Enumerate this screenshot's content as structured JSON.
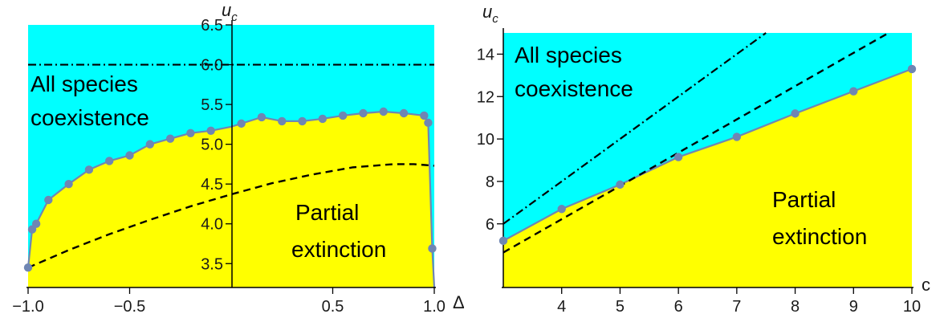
{
  "colors": {
    "coexistence": "#00ffff",
    "extinction": "#ffff00",
    "threshold_line": "#6f86b3",
    "marker": "#6f86b3",
    "dashed": "#000000",
    "axis": "#000000"
  },
  "chart_data": [
    {
      "type": "area",
      "xlabel": "Δ",
      "ylabel_main": "u",
      "ylabel_sub": "c",
      "xlim": [
        -1.0,
        1.0
      ],
      "ylim": [
        3.2,
        6.5
      ],
      "x_ticks": [
        "−1.0",
        "−0.5",
        "0.5",
        "1.0"
      ],
      "x_tick_values": [
        -1.0,
        -0.5,
        0.5,
        1.0
      ],
      "y_ticks": [
        "3.5",
        "4.0",
        "4.5",
        "5.0",
        "5.5",
        "6.0",
        "6.5"
      ],
      "y_tick_values": [
        3.5,
        4.0,
        4.5,
        5.0,
        5.5,
        6.0,
        6.5
      ],
      "grid": false,
      "region_upper_label": [
        "All species",
        "coexistence"
      ],
      "region_lower_label": [
        "Partial",
        "extinction"
      ],
      "series": [
        {
          "role": "threshold",
          "x": [
            -1.0,
            -0.98,
            -0.96,
            -0.9,
            -0.8,
            -0.7,
            -0.6,
            -0.5,
            -0.4,
            -0.3,
            -0.2,
            -0.1,
            0.0,
            0.05,
            0.15,
            0.25,
            0.35,
            0.45,
            0.55,
            0.65,
            0.75,
            0.85,
            0.95,
            0.97,
            0.99,
            1.0
          ],
          "y": [
            3.45,
            3.93,
            4.0,
            4.3,
            4.5,
            4.68,
            4.79,
            4.86,
            5.0,
            5.07,
            5.14,
            5.17,
            5.22,
            5.26,
            5.34,
            5.29,
            5.29,
            5.32,
            5.36,
            5.39,
            5.41,
            5.39,
            5.36,
            5.27,
            3.69,
            3.2
          ]
        },
        {
          "role": "dashed",
          "x": [
            -1.0,
            -0.8,
            -0.6,
            -0.4,
            -0.2,
            0.0,
            0.2,
            0.4,
            0.6,
            0.8,
            0.9,
            1.0
          ],
          "y": [
            3.45,
            3.67,
            3.87,
            4.05,
            4.22,
            4.37,
            4.51,
            4.62,
            4.71,
            4.75,
            4.75,
            4.73
          ]
        },
        {
          "role": "dashdot",
          "x": [
            -1.0,
            1.0
          ],
          "y": [
            6.0,
            6.0
          ]
        }
      ],
      "markers": {
        "x": [
          -1.0,
          -0.98,
          -0.96,
          -0.9,
          -0.8,
          -0.7,
          -0.6,
          -0.5,
          -0.4,
          -0.3,
          -0.2,
          -0.1,
          0.05,
          0.15,
          0.25,
          0.35,
          0.45,
          0.55,
          0.65,
          0.75,
          0.85,
          0.95,
          0.97,
          0.99
        ],
        "y": [
          3.45,
          3.93,
          4.0,
          4.3,
          4.5,
          4.68,
          4.79,
          4.86,
          5.0,
          5.07,
          5.14,
          5.17,
          5.26,
          5.34,
          5.29,
          5.29,
          5.32,
          5.36,
          5.39,
          5.41,
          5.39,
          5.36,
          5.27,
          3.69
        ]
      }
    },
    {
      "type": "area",
      "xlabel": "c",
      "ylabel_main": "u",
      "ylabel_sub": "c",
      "xlim": [
        3.0,
        10.0
      ],
      "ylim": [
        3.0,
        15.0
      ],
      "x_ticks": [
        "4",
        "5",
        "6",
        "7",
        "8",
        "9",
        "10"
      ],
      "x_tick_values": [
        4,
        5,
        6,
        7,
        8,
        9,
        10
      ],
      "y_ticks": [
        "6",
        "8",
        "10",
        "12",
        "14"
      ],
      "y_tick_values": [
        6,
        8,
        10,
        12,
        14
      ],
      "grid": false,
      "region_upper_label": [
        "All species",
        "coexistence"
      ],
      "region_lower_label": [
        "Partial",
        "extinction"
      ],
      "series": [
        {
          "role": "threshold",
          "x": [
            3,
            4,
            5,
            6,
            7,
            8,
            9,
            10
          ],
          "y": [
            5.2,
            6.7,
            7.85,
            9.15,
            10.1,
            11.2,
            12.25,
            13.3
          ]
        },
        {
          "role": "dashed",
          "x": [
            3.0,
            9.6
          ],
          "y": [
            4.65,
            15.0
          ]
        },
        {
          "role": "dashdot",
          "x": [
            3.0,
            7.5
          ],
          "y": [
            6.0,
            15.0
          ]
        }
      ],
      "markers": {
        "x": [
          3,
          4,
          5,
          6,
          7,
          8,
          9,
          10
        ],
        "y": [
          5.2,
          6.7,
          7.85,
          9.15,
          10.1,
          11.2,
          12.25,
          13.3
        ]
      }
    }
  ]
}
